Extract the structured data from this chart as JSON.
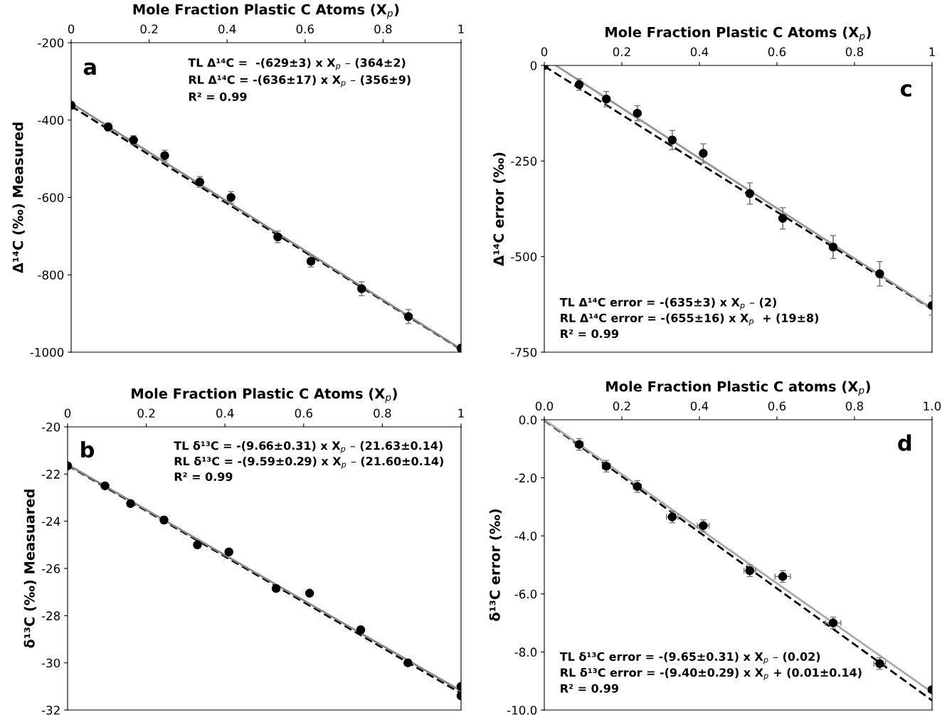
{
  "chart_data": [
    {
      "type": "scatter",
      "xlabel": "Mole Fraction Plastic C Atoms (X$_{p}$)",
      "ylabel": "Δ¹⁴C (‰) Measured",
      "xlim": [
        0,
        1
      ],
      "xticks": [
        0,
        0.2,
        0.4,
        0.6,
        0.8,
        1
      ],
      "ylim": [
        -1000,
        -200
      ],
      "yticks": [
        -1000,
        -800,
        -600,
        -400,
        -200
      ],
      "grid": false,
      "annotations": [
        "a",
        "TL Δ¹⁴C =  -(629±3) x X$_{p}$ – (364±2)",
        "RL Δ¹⁴C = -(636±17) x X$_{p}$ – (356±9)",
        "R² = 0.99"
      ],
      "series": [
        {
          "type": "scatter",
          "marker": "circle",
          "color": "#000000",
          "x": [
            0,
            0.095,
            0.16,
            0.24,
            0.33,
            0.41,
            0.53,
            0.615,
            0.745,
            0.865,
            1.0
          ],
          "values": [
            -362,
            -418,
            -452,
            -492,
            -560,
            -600,
            -702,
            -765,
            -836,
            -908,
            -990
          ],
          "errors": [
            10,
            10,
            12,
            14,
            14,
            15,
            15,
            15,
            18,
            18,
            10
          ]
        },
        {
          "type": "line",
          "color": "#000000",
          "line_style": "dashed",
          "x": [
            0,
            1
          ],
          "values": [
            -364,
            -993
          ]
        },
        {
          "type": "line",
          "color": "#888888",
          "line_style": "solid",
          "x": [
            0,
            1
          ],
          "values": [
            -356,
            -992
          ]
        }
      ]
    },
    {
      "type": "scatter",
      "xlabel": "Mole Fraction Plastic C Atoms (X$_{p}$)",
      "ylabel": "δ¹³C (‰) Measuared",
      "xlim": [
        0,
        1
      ],
      "xticks": [
        0,
        0.2,
        0.4,
        0.6,
        0.8,
        1
      ],
      "ylim": [
        -32,
        -20
      ],
      "yticks": [
        -32,
        -30,
        -28,
        -26,
        -24,
        -22,
        -20
      ],
      "grid": false,
      "annotations": [
        "b",
        "TL δ¹³C = -(9.66±0.31) x X$_{p}$ – (21.63±0.14)",
        "RL δ¹³C = -(9.59±0.29) x X$_{p}$ – (21.60±0.14)",
        "R² = 0.99"
      ],
      "series": [
        {
          "type": "scatter",
          "marker": "circle",
          "color": "#000000",
          "x": [
            0,
            0.095,
            0.16,
            0.245,
            0.33,
            0.41,
            0.53,
            0.615,
            0.745,
            0.865,
            1.0,
            1.0
          ],
          "values": [
            -21.65,
            -22.5,
            -23.25,
            -23.95,
            -25.0,
            -25.3,
            -26.85,
            -27.05,
            -28.6,
            -30.0,
            -31.0,
            -31.4
          ],
          "errors": [
            0.1,
            0.1,
            0.1,
            0.15,
            0.1,
            0.1,
            0.1,
            0.1,
            0.1,
            0.1,
            0.1,
            0.1
          ]
        },
        {
          "type": "line",
          "color": "#000000",
          "line_style": "dashed",
          "x": [
            0,
            1
          ],
          "values": [
            -21.63,
            -31.29
          ]
        },
        {
          "type": "line",
          "color": "#888888",
          "line_style": "solid",
          "x": [
            0,
            1
          ],
          "values": [
            -21.6,
            -31.19
          ]
        }
      ]
    },
    {
      "type": "scatter",
      "xlabel": "Mole Fraction Plastic C Atoms (X$_{p}$)",
      "ylabel": "Δ¹⁴C error (‰)",
      "xlim": [
        0,
        1
      ],
      "xticks": [
        0,
        0.2,
        0.4,
        0.6,
        0.8,
        1
      ],
      "ylim": [
        -750,
        0
      ],
      "yticks": [
        -750,
        -500,
        -250,
        0
      ],
      "grid": false,
      "annotations": [
        "c",
        "TL Δ¹⁴C error = -(635±3) x X$_{p}$ – (2)",
        "RL Δ¹⁴C error = -(655±16) x X$_{p}$  + (19±8)",
        "R² = 0.99"
      ],
      "series": [
        {
          "type": "scatter",
          "marker": "circle",
          "color": "#000000",
          "x": [
            0,
            0.09,
            0.16,
            0.24,
            0.33,
            0.41,
            0.53,
            0.615,
            0.745,
            0.865,
            1.0
          ],
          "values": [
            0,
            -50,
            -88,
            -125,
            -195,
            -230,
            -335,
            -400,
            -475,
            -545,
            -628
          ],
          "errors": [
            5,
            15,
            20,
            20,
            25,
            25,
            28,
            28,
            30,
            32,
            25
          ]
        },
        {
          "type": "line",
          "color": "#000000",
          "line_style": "dashed",
          "x": [
            0,
            1
          ],
          "values": [
            -2,
            -637
          ]
        },
        {
          "type": "line",
          "color": "#999999",
          "line_style": "solid",
          "x": [
            0.03,
            1
          ],
          "values": [
            0,
            -636
          ]
        }
      ]
    },
    {
      "type": "scatter",
      "xlabel": "Mole Fraction Plastic C atoms (X$_{p}$)",
      "ylabel": "δ¹³C error (‰)",
      "xlim": [
        0,
        1
      ],
      "xticks": [
        {
          "value": 0,
          "label": "0.0"
        },
        0.2,
        0.4,
        0.6,
        0.8,
        {
          "value": 1,
          "label": "1.0"
        }
      ],
      "ylim": [
        -10,
        0
      ],
      "yticks": [
        {
          "value": -10,
          "label": "-10.0"
        },
        {
          "value": -8,
          "label": "-8.0"
        },
        {
          "value": -6,
          "label": "-6.0"
        },
        {
          "value": -4,
          "label": "-4.0"
        },
        {
          "value": -2,
          "label": "-2.0"
        },
        {
          "value": 0,
          "label": "0.0"
        }
      ],
      "grid": false,
      "annotations": [
        "d",
        "TL δ¹³C error = -(9.65±0.31) x X$_{p}$ – (0.02)",
        "RL δ¹³C error = -(9.40±0.29) x X$_{p}$ + (0.01±0.14)",
        "R² = 0.99"
      ],
      "series": [
        {
          "type": "scatter",
          "marker": "circle",
          "color": "#000000",
          "x": [
            0.09,
            0.16,
            0.24,
            0.33,
            0.41,
            0.53,
            0.615,
            0.745,
            0.865,
            1.0
          ],
          "values": [
            -0.85,
            -1.6,
            -2.3,
            -3.35,
            -3.65,
            -5.2,
            -5.4,
            -7.0,
            -8.4,
            -9.3
          ],
          "errors": [
            0.2,
            0.2,
            0.2,
            0.2,
            0.2,
            0.2,
            0.2,
            0.2,
            0.2,
            0.1
          ],
          "xerrors": [
            0.01,
            0.01,
            0.01,
            0.015,
            0.015,
            0.015,
            0.02,
            0.02,
            0.015,
            0.01
          ]
        },
        {
          "type": "line",
          "color": "#000000",
          "line_style": "dashed",
          "x": [
            0,
            1
          ],
          "values": [
            -0.02,
            -9.67
          ]
        },
        {
          "type": "line",
          "color": "#aaaaaa",
          "line_style": "solid",
          "x": [
            0,
            1
          ],
          "values": [
            0.0,
            -9.39
          ]
        }
      ]
    }
  ]
}
